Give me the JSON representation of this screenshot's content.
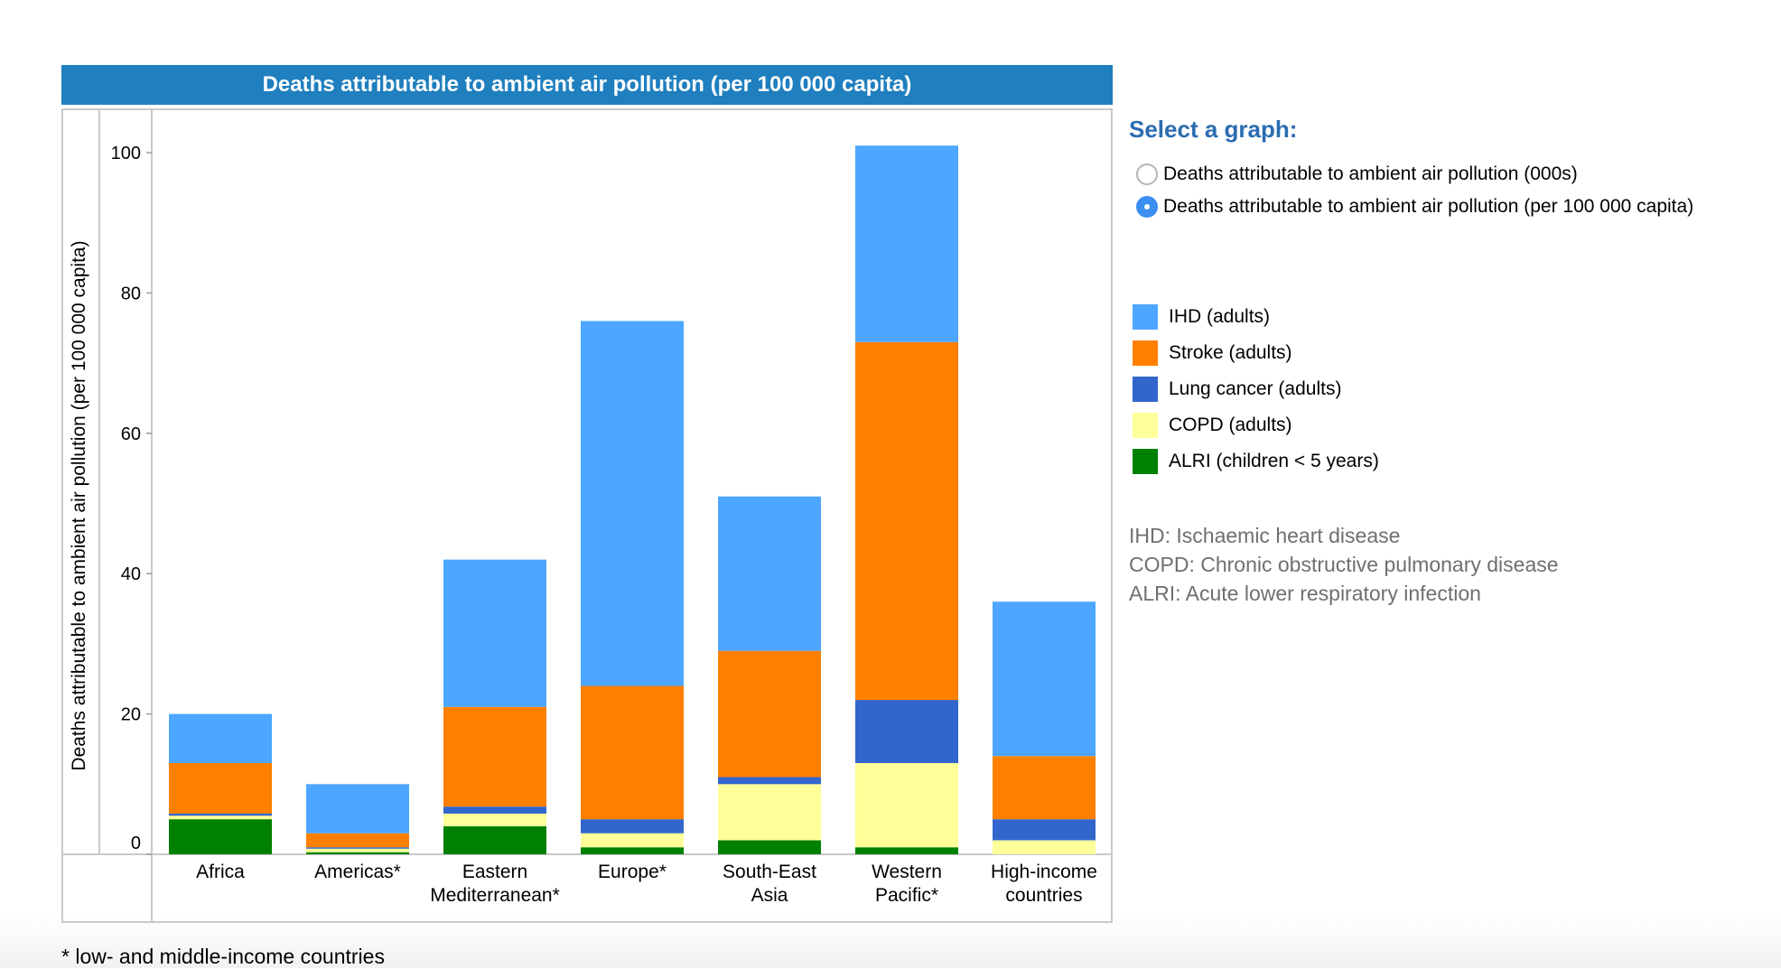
{
  "chart_title": "Deaths attributable to ambient air pollution (per 100 000 capita)",
  "select": {
    "title": "Select a graph:",
    "options": [
      {
        "label": "Deaths attributable to ambient air pollution (000s)",
        "checked": false
      },
      {
        "label": "Deaths attributable to ambient air pollution (per 100 000 capita)",
        "checked": true
      }
    ]
  },
  "abbreviations": [
    "IHD: Ischaemic heart disease",
    "COPD: Chronic obstructive pulmonary disease",
    "ALRI: Acute lower respiratory infection"
  ],
  "footnote": "* low- and middle-income countries",
  "chart_data": {
    "type": "bar",
    "stacked": true,
    "title": "Deaths attributable to ambient air pollution (per 100 000 capita)",
    "ylabel": "Deaths attributable to ambient air pollution (per 100 000 capita)",
    "xlabel": "",
    "ylim": [
      0,
      105
    ],
    "yticks": [
      0,
      20,
      40,
      60,
      80,
      100
    ],
    "categories": [
      [
        "Africa"
      ],
      [
        "Americas*"
      ],
      [
        "Eastern",
        "Mediterranean*"
      ],
      [
        "Europe*"
      ],
      [
        "South-East",
        "Asia"
      ],
      [
        "Western",
        "Pacific*"
      ],
      [
        "High-income",
        "countries"
      ]
    ],
    "series": [
      {
        "name": "ALRI (children < 5 years)",
        "color": "#008000",
        "values": [
          5,
          0.3,
          4,
          1,
          2,
          1,
          0
        ]
      },
      {
        "name": "COPD (adults)",
        "color": "#ffff99",
        "values": [
          0.5,
          0.5,
          1.8,
          2,
          8,
          12,
          2
        ]
      },
      {
        "name": "Lung cancer (adults)",
        "color": "#3366cc",
        "values": [
          0.3,
          0.2,
          1,
          2,
          1,
          9,
          3
        ]
      },
      {
        "name": "Stroke (adults)",
        "color": "#ff8000",
        "values": [
          7.2,
          2,
          14.2,
          19,
          18,
          51,
          9
        ]
      },
      {
        "name": "IHD (adults)",
        "color": "#4da6ff",
        "values": [
          7,
          7,
          21,
          52,
          22,
          28,
          22
        ]
      }
    ],
    "legend_order": [
      4,
      3,
      2,
      1,
      0
    ],
    "legend_placement": "right",
    "grid": false
  }
}
